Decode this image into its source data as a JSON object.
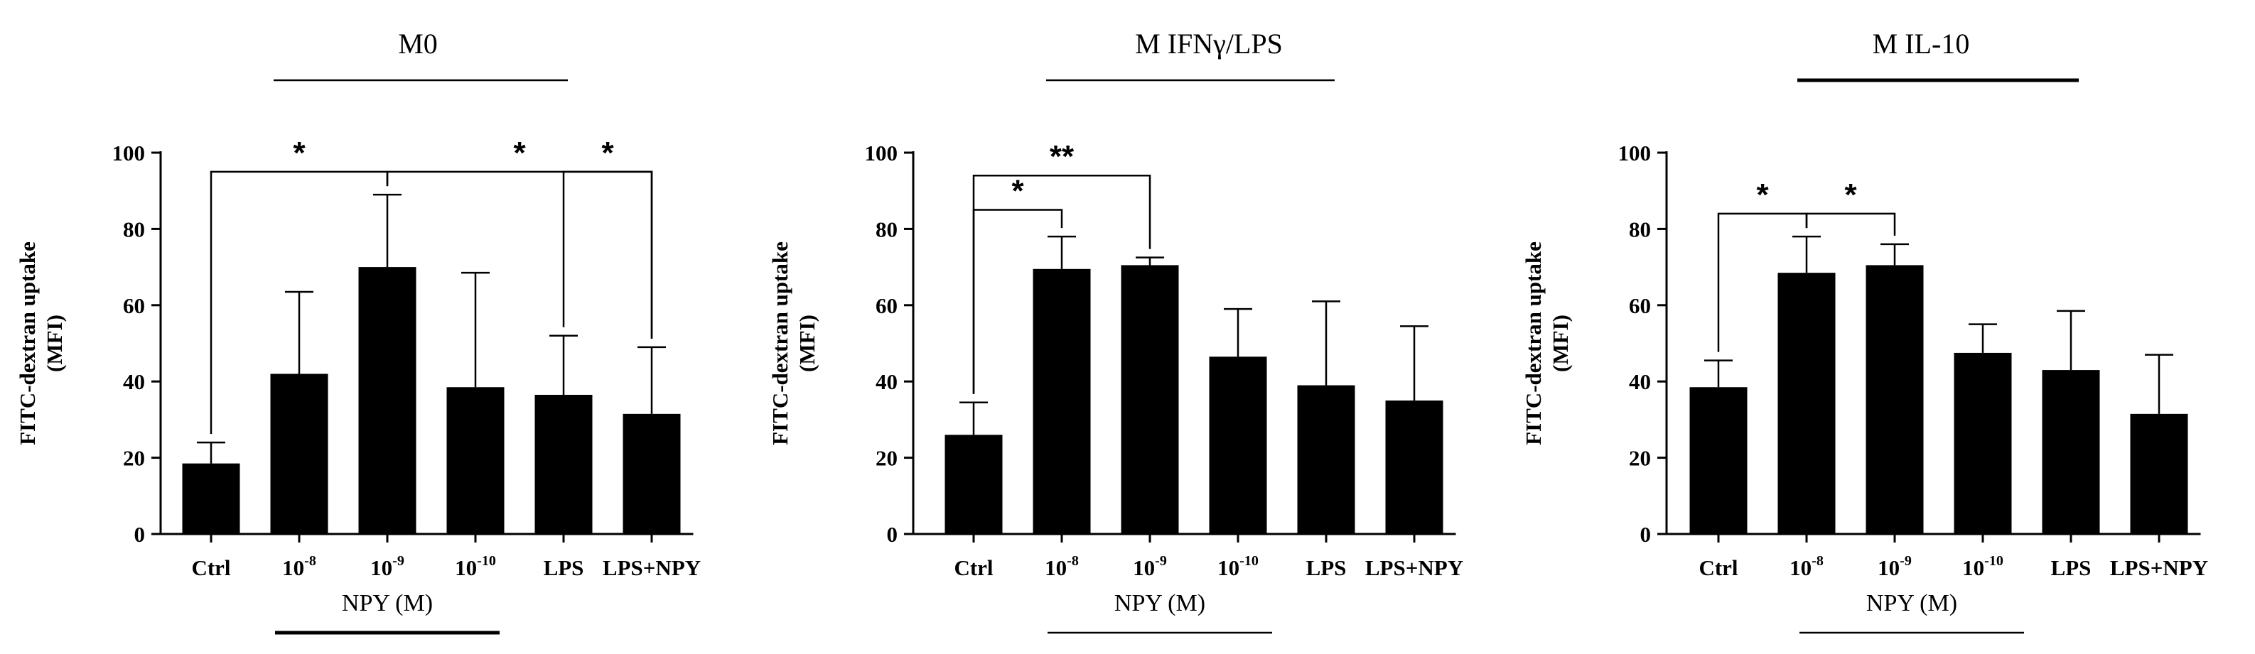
{
  "chart_data": [
    {
      "type": "bar",
      "title": "M0",
      "ylabel": "FITC-dextran uptake",
      "ylabel_unit": "(MFI)",
      "xlabel": "NPY (M)",
      "ylim": [
        0,
        100
      ],
      "yticks": [
        "0",
        "20",
        "40",
        "60",
        "80",
        "100"
      ],
      "categories": [
        {
          "label": "Ctrl"
        },
        {
          "label": "10",
          "sup": "-8"
        },
        {
          "label": "10",
          "sup": "-9"
        },
        {
          "label": "10",
          "sup": "-10"
        },
        {
          "label": "LPS"
        },
        {
          "label": "LPS+NPY"
        }
      ],
      "values": [
        18.5,
        42,
        70,
        38.5,
        36.5,
        31.5
      ],
      "errors": [
        5.5,
        21.5,
        19,
        30,
        15.5,
        17.5
      ],
      "title_underline": "thin",
      "xlabel_underline": "thick",
      "significance": [
        {
          "label": "*",
          "from": 0,
          "to": 2,
          "height": 95
        },
        {
          "label": "*",
          "from": 2,
          "to": 5,
          "height": 95
        },
        {
          "label": "*",
          "from": 4,
          "to": 5,
          "height": 95
        }
      ]
    },
    {
      "type": "bar",
      "title": "M IFNγ/LPS",
      "ylabel": "FITC-dextran uptake",
      "ylabel_unit": "(MFI)",
      "xlabel": "NPY (M)",
      "ylim": [
        0,
        100
      ],
      "yticks": [
        "0",
        "20",
        "40",
        "60",
        "80",
        "100"
      ],
      "categories": [
        {
          "label": "Ctrl"
        },
        {
          "label": "10",
          "sup": "-8"
        },
        {
          "label": "10",
          "sup": "-9"
        },
        {
          "label": "10",
          "sup": "-10"
        },
        {
          "label": "LPS"
        },
        {
          "label": "LPS+NPY"
        }
      ],
      "values": [
        26,
        69.5,
        70.5,
        46.5,
        39,
        35
      ],
      "errors": [
        8.5,
        8.5,
        2,
        12.5,
        22,
        19.5
      ],
      "title_underline": "thin",
      "xlabel_underline": "thin",
      "significance": [
        {
          "label": "*",
          "from": 0,
          "to": 1,
          "height": 85
        },
        {
          "label": "**",
          "from": 0,
          "to": 2,
          "height": 94
        }
      ]
    },
    {
      "type": "bar",
      "title": "M IL-10",
      "ylabel": "FITC-dextran uptake",
      "ylabel_unit": "(MFI)",
      "xlabel": "NPY (M)",
      "ylim": [
        0,
        100
      ],
      "yticks": [
        "0",
        "20",
        "40",
        "60",
        "80",
        "100"
      ],
      "categories": [
        {
          "label": "Ctrl"
        },
        {
          "label": "10",
          "sup": "-8"
        },
        {
          "label": "10",
          "sup": "-9"
        },
        {
          "label": "10",
          "sup": "-10"
        },
        {
          "label": "LPS"
        },
        {
          "label": "LPS+NPY"
        }
      ],
      "values": [
        38.5,
        68.5,
        70.5,
        47.5,
        43,
        31.5
      ],
      "errors": [
        7,
        9.5,
        5.5,
        7.5,
        15.5,
        15.5
      ],
      "title_underline": "thick",
      "xlabel_underline": "thin",
      "significance": [
        {
          "label": "*",
          "from": 0,
          "to": 1,
          "height": 84
        },
        {
          "label": "*",
          "from": 1,
          "to": 2,
          "height": 84
        }
      ]
    }
  ]
}
